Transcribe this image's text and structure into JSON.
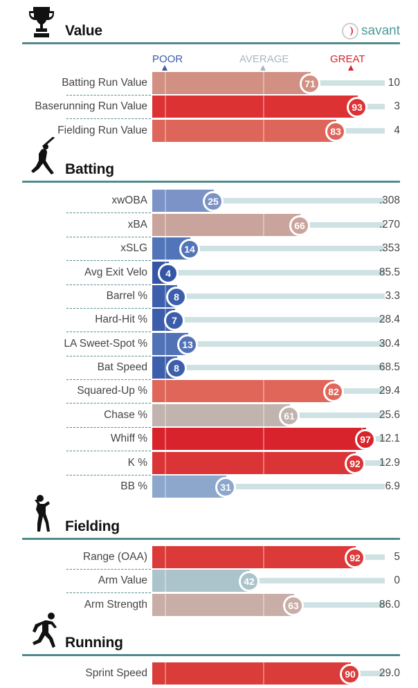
{
  "brand": {
    "name": "savant",
    "icon": "baseball-icon"
  },
  "scale": {
    "poor": "POOR",
    "average": "AVERAGE",
    "great": "GREAT",
    "poor_color": "#3b5aa8",
    "average_color": "#a9b6be",
    "great_color": "#d7232b"
  },
  "sections": [
    {
      "id": "value",
      "title": "Value",
      "icon": "trophy-icon",
      "rows": [
        {
          "label": "Batting Run Value",
          "percentile": 71,
          "value": "10",
          "color": "#d29083"
        },
        {
          "label": "Baserunning Run Value",
          "percentile": 93,
          "value": "3",
          "color": "#dc3233"
        },
        {
          "label": "Fielding Run Value",
          "percentile": 83,
          "value": "4",
          "color": "#de6559"
        }
      ]
    },
    {
      "id": "batting",
      "title": "Batting",
      "icon": "batter-icon",
      "rows": [
        {
          "label": "xwOBA",
          "percentile": 25,
          "value": ".308",
          "color": "#7b93c6"
        },
        {
          "label": "xBA",
          "percentile": 66,
          "value": ".270",
          "color": "#c9a49c"
        },
        {
          "label": "xSLG",
          "percentile": 14,
          "value": ".353",
          "color": "#5274b8"
        },
        {
          "label": "Avg Exit Velo",
          "percentile": 4,
          "value": "85.5",
          "color": "#3556a7"
        },
        {
          "label": "Barrel %",
          "percentile": 8,
          "value": "3.3",
          "color": "#3d5fab"
        },
        {
          "label": "Hard-Hit %",
          "percentile": 7,
          "value": "28.4",
          "color": "#3b5daa"
        },
        {
          "label": "LA Sweet-Spot %",
          "percentile": 13,
          "value": "30.4",
          "color": "#5272b7"
        },
        {
          "label": "Bat Speed",
          "percentile": 8,
          "value": "68.5",
          "color": "#3d5fab"
        },
        {
          "label": "Squared-Up %",
          "percentile": 82,
          "value": "29.4",
          "color": "#df6658"
        },
        {
          "label": "Chase %",
          "percentile": 61,
          "value": "25.6",
          "color": "#c1b3ae"
        },
        {
          "label": "Whiff %",
          "percentile": 97,
          "value": "12.1",
          "color": "#d8232c"
        },
        {
          "label": "K %",
          "percentile": 92,
          "value": "12.9",
          "color": "#da3436"
        },
        {
          "label": "BB %",
          "percentile": 31,
          "value": "6.9",
          "color": "#8ca6cc"
        }
      ]
    },
    {
      "id": "fielding",
      "title": "Fielding",
      "icon": "fielder-icon",
      "rows": [
        {
          "label": "Range (OAA)",
          "percentile": 92,
          "value": "5",
          "color": "#db3a39"
        },
        {
          "label": "Arm Value",
          "percentile": 42,
          "value": "0",
          "color": "#abc4cb"
        },
        {
          "label": "Arm Strength",
          "percentile": 63,
          "value": "86.0",
          "color": "#c8aea7"
        }
      ]
    },
    {
      "id": "running",
      "title": "Running",
      "icon": "runner-icon",
      "rows": [
        {
          "label": "Sprint Speed",
          "percentile": 90,
          "value": "29.0",
          "color": "#da3c3a"
        }
      ]
    }
  ]
}
